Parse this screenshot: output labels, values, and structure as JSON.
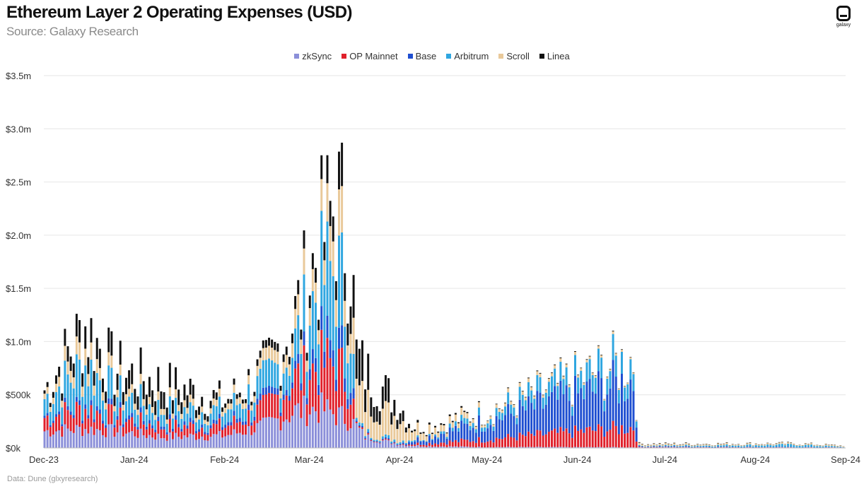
{
  "header": {
    "title": "Ethereum Layer 2 Operating Expenses (USD)",
    "subtitle": "Source: Galaxy Research",
    "logo_text": "galaxy"
  },
  "footer": {
    "note": "Data: Dune (glxyresearch)"
  },
  "colors": {
    "zkSync": "#8b8fd9",
    "OP Mainnet": "#e0202b",
    "Base": "#1f4fd1",
    "Arbitrum": "#2fa6e0",
    "Scroll": "#e9c99a",
    "Linea": "#111111",
    "grid": "#e6e6e6"
  },
  "chart_data": {
    "type": "bar",
    "stacked": true,
    "legend_position": "top-center",
    "grid": true,
    "ylim": [
      0,
      3500000
    ],
    "y_ticks": [
      {
        "value": 0,
        "label": "$0k"
      },
      {
        "value": 500000,
        "label": "$500k"
      },
      {
        "value": 1000000,
        "label": "$1.0m"
      },
      {
        "value": 1500000,
        "label": "$1.5m"
      },
      {
        "value": 2000000,
        "label": "$2.0m"
      },
      {
        "value": 2500000,
        "label": "$2.5m"
      },
      {
        "value": 3000000,
        "label": "$3.0m"
      },
      {
        "value": 3500000,
        "label": "$3.5m"
      }
    ],
    "x_range": [
      "2023-12-01",
      "2024-09-01"
    ],
    "x_ticks": [
      {
        "date": "2023-12-01",
        "label": "Dec-23"
      },
      {
        "date": "2024-01-01",
        "label": "Jan-24"
      },
      {
        "date": "2024-02-01",
        "label": "Feb-24"
      },
      {
        "date": "2024-03-01",
        "label": "Mar-24"
      },
      {
        "date": "2024-04-01",
        "label": "Apr-24"
      },
      {
        "date": "2024-05-01",
        "label": "May-24"
      },
      {
        "date": "2024-06-01",
        "label": "Jun-24"
      },
      {
        "date": "2024-07-01",
        "label": "Jul-24"
      },
      {
        "date": "2024-08-01",
        "label": "Aug-24"
      },
      {
        "date": "2024-09-01",
        "label": "Sep-24"
      }
    ],
    "series": [
      {
        "name": "zkSync",
        "points": [
          [
            "2023-12-01",
            150000
          ],
          [
            "2023-12-15",
            170000
          ],
          [
            "2023-12-25",
            150000
          ],
          [
            "2024-01-10",
            100000
          ],
          [
            "2024-02-01",
            110000
          ],
          [
            "2024-02-15",
            200000
          ],
          [
            "2024-02-25",
            330000
          ],
          [
            "2024-03-05",
            350000
          ],
          [
            "2024-03-15",
            250000
          ],
          [
            "2024-03-20",
            100000
          ],
          [
            "2024-04-01",
            30000
          ],
          [
            "2024-04-10",
            15000
          ],
          [
            "2024-05-01",
            8000
          ],
          [
            "2024-09-01",
            3000
          ]
        ]
      },
      {
        "name": "OP Mainnet",
        "points": [
          [
            "2023-12-01",
            120000
          ],
          [
            "2023-12-15",
            180000
          ],
          [
            "2023-12-25",
            120000
          ],
          [
            "2024-01-10",
            90000
          ],
          [
            "2024-02-01",
            80000
          ],
          [
            "2024-02-15",
            150000
          ],
          [
            "2024-03-01",
            350000
          ],
          [
            "2024-03-10",
            450000
          ],
          [
            "2024-03-15",
            300000
          ],
          [
            "2024-03-17",
            10000
          ],
          [
            "2024-04-01",
            5000
          ],
          [
            "2024-06-20",
            180000
          ],
          [
            "2024-06-22",
            3000
          ],
          [
            "2024-09-01",
            1000
          ]
        ]
      },
      {
        "name": "Base",
        "points": [
          [
            "2023-12-01",
            20000
          ],
          [
            "2023-12-15",
            40000
          ],
          [
            "2024-01-10",
            30000
          ],
          [
            "2024-02-01",
            30000
          ],
          [
            "2024-02-25",
            60000
          ],
          [
            "2024-03-05",
            150000
          ],
          [
            "2024-03-15",
            150000
          ],
          [
            "2024-03-17",
            10000
          ],
          [
            "2024-04-01",
            8000
          ],
          [
            "2024-06-20",
            420000
          ],
          [
            "2024-06-22",
            5000
          ],
          [
            "2024-09-01",
            2000
          ]
        ]
      },
      {
        "name": "Arbitrum",
        "points": [
          [
            "2023-12-01",
            150000
          ],
          [
            "2023-12-15",
            350000
          ],
          [
            "2023-12-25",
            180000
          ],
          [
            "2024-01-10",
            120000
          ],
          [
            "2024-02-01",
            110000
          ],
          [
            "2024-02-15",
            180000
          ],
          [
            "2024-02-25",
            250000
          ],
          [
            "2024-03-05",
            600000
          ],
          [
            "2024-03-10",
            700000
          ],
          [
            "2024-03-15",
            500000
          ],
          [
            "2024-03-17",
            20000
          ],
          [
            "2024-04-01",
            20000
          ],
          [
            "2024-04-10",
            10000
          ],
          [
            "2024-06-20",
            180000
          ],
          [
            "2024-06-22",
            5000
          ],
          [
            "2024-08-15",
            20000
          ],
          [
            "2024-09-01",
            3000
          ]
        ]
      },
      {
        "name": "Scroll",
        "points": [
          [
            "2023-12-01",
            50000
          ],
          [
            "2023-12-15",
            150000
          ],
          [
            "2023-12-25",
            70000
          ],
          [
            "2024-01-10",
            60000
          ],
          [
            "2024-02-01",
            50000
          ],
          [
            "2024-02-15",
            80000
          ],
          [
            "2024-02-25",
            150000
          ],
          [
            "2024-03-05",
            200000
          ],
          [
            "2024-03-10",
            350000
          ],
          [
            "2024-03-15",
            250000
          ],
          [
            "2024-03-17",
            300000
          ],
          [
            "2024-04-01",
            200000
          ],
          [
            "2024-04-05",
            100000
          ],
          [
            "2024-04-15",
            60000
          ],
          [
            "2024-05-01",
            30000
          ],
          [
            "2024-06-01",
            20000
          ],
          [
            "2024-07-01",
            12000
          ],
          [
            "2024-09-01",
            8000
          ]
        ]
      },
      {
        "name": "Linea",
        "points": [
          [
            "2023-12-01",
            30000
          ],
          [
            "2023-12-15",
            200000
          ],
          [
            "2023-12-25",
            150000
          ],
          [
            "2024-01-10",
            180000
          ],
          [
            "2024-02-01",
            40000
          ],
          [
            "2024-02-15",
            50000
          ],
          [
            "2024-02-25",
            100000
          ],
          [
            "2024-03-05",
            150000
          ],
          [
            "2024-03-10",
            250000
          ],
          [
            "2024-03-15",
            350000
          ],
          [
            "2024-03-17",
            300000
          ],
          [
            "2024-04-01",
            120000
          ],
          [
            "2024-04-05",
            20000
          ],
          [
            "2024-05-01",
            5000
          ],
          [
            "2024-09-01",
            2000
          ]
        ]
      }
    ]
  }
}
